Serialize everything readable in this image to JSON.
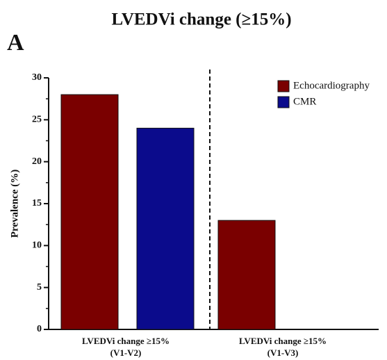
{
  "chart_data": {
    "type": "bar",
    "title": "LVEDVi change (≥15%)",
    "panel_label": "A",
    "ylabel": "Prevalence (%)",
    "categories": [
      [
        "LVEDVi change ≥15%",
        "(V1-V2)"
      ],
      [
        "LVEDVi change ≥15%",
        "(V1-V3)"
      ]
    ],
    "series": [
      {
        "name": "Echocardiography",
        "color": "#7a0000",
        "values": [
          28,
          13
        ]
      },
      {
        "name": "CMR",
        "color": "#0b0b8c",
        "values": [
          24,
          null
        ]
      }
    ],
    "ylim": [
      0,
      30
    ],
    "yticks": [
      0,
      5,
      10,
      15,
      20,
      25,
      30
    ],
    "yminorticks": [
      2.5,
      7.5,
      12.5,
      17.5,
      22.5,
      27.5
    ],
    "legend": "upper-right"
  }
}
